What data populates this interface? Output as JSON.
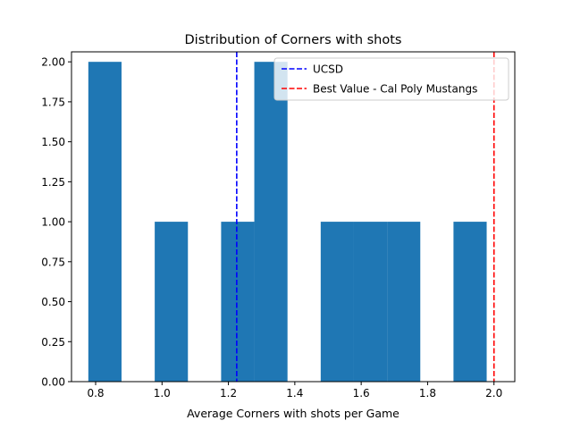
{
  "chart_data": {
    "type": "bar",
    "title": "Distribution of Corners with shots",
    "xlabel": "Average Corners with shots per Game",
    "ylabel": "",
    "xlim": [
      0.7273,
      2.0627
    ],
    "ylim": [
      0,
      2.0625
    ],
    "xticks": [
      0.8,
      1.0,
      1.2,
      1.4,
      1.6,
      1.8,
      2.0
    ],
    "xtick_labels": [
      "0.8",
      "1.0",
      "1.2",
      "1.4",
      "1.6",
      "1.8",
      "2.0"
    ],
    "yticks": [
      0,
      0.25,
      0.5,
      0.75,
      1.0,
      1.25,
      1.5,
      1.75,
      2.0
    ],
    "ytick_labels": [
      "0.00",
      "0.25",
      "0.50",
      "0.75",
      "1.00",
      "1.25",
      "1.50",
      "1.75",
      "2.00"
    ],
    "bins": [
      {
        "x0": 0.778,
        "x1": 0.878,
        "count": 2
      },
      {
        "x0": 0.878,
        "x1": 0.978,
        "count": 0
      },
      {
        "x0": 0.978,
        "x1": 1.078,
        "count": 1
      },
      {
        "x0": 1.078,
        "x1": 1.178,
        "count": 0
      },
      {
        "x0": 1.178,
        "x1": 1.278,
        "count": 1
      },
      {
        "x0": 1.278,
        "x1": 1.378,
        "count": 2
      },
      {
        "x0": 1.378,
        "x1": 1.478,
        "count": 0
      },
      {
        "x0": 1.478,
        "x1": 1.578,
        "count": 1
      },
      {
        "x0": 1.578,
        "x1": 1.678,
        "count": 1
      },
      {
        "x0": 1.678,
        "x1": 1.778,
        "count": 1
      },
      {
        "x0": 1.778,
        "x1": 1.878,
        "count": 0
      },
      {
        "x0": 1.878,
        "x1": 1.978,
        "count": 1
      }
    ],
    "bar_color": "#1f77b4",
    "reference_lines": [
      {
        "label": "UCSD",
        "x": 1.225,
        "color": "#0000ff",
        "style": "dashed"
      },
      {
        "label": "Best Value - Cal Poly Mustangs",
        "x": 2.0,
        "color": "#ff0000",
        "style": "dashed"
      }
    ],
    "legend_position": "top-right",
    "grid": false
  }
}
